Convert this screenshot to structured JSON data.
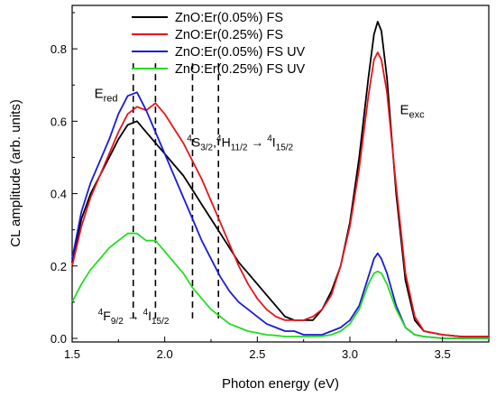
{
  "chart_data": {
    "type": "line",
    "xlabel": "Photon energy (eV)",
    "ylabel": "CL amplitude (arb. units)",
    "xlim": [
      1.5,
      3.75
    ],
    "ylim": [
      -0.01,
      0.92
    ],
    "xticks": [
      1.5,
      2.0,
      2.5,
      3.0,
      3.5
    ],
    "xtick_labels": [
      "1.5",
      "2.0",
      "2.5",
      "3.0",
      "3.5"
    ],
    "yticks": [
      0.0,
      0.2,
      0.4,
      0.6,
      0.8
    ],
    "ytick_labels": [
      "0.0",
      "0.2",
      "0.4",
      "0.6",
      "0.8"
    ],
    "legend_position": "top-center",
    "grid": false,
    "series": [
      {
        "name": "ZnO:Er(0.05%) FS",
        "color": "#000000",
        "x": [
          1.5,
          1.55,
          1.6,
          1.65,
          1.7,
          1.75,
          1.8,
          1.85,
          1.9,
          1.95,
          2.0,
          2.05,
          2.1,
          2.15,
          2.2,
          2.25,
          2.3,
          2.35,
          2.4,
          2.45,
          2.5,
          2.55,
          2.6,
          2.65,
          2.7,
          2.75,
          2.8,
          2.85,
          2.9,
          2.95,
          3.0,
          3.05,
          3.1,
          3.13,
          3.15,
          3.17,
          3.2,
          3.25,
          3.3,
          3.35,
          3.4,
          3.5,
          3.6,
          3.7,
          3.75
        ],
        "y": [
          0.21,
          0.33,
          0.4,
          0.45,
          0.5,
          0.55,
          0.59,
          0.6,
          0.57,
          0.54,
          0.51,
          0.48,
          0.45,
          0.41,
          0.37,
          0.33,
          0.29,
          0.25,
          0.21,
          0.18,
          0.15,
          0.12,
          0.09,
          0.06,
          0.05,
          0.05,
          0.05,
          0.08,
          0.13,
          0.2,
          0.32,
          0.5,
          0.72,
          0.84,
          0.875,
          0.85,
          0.72,
          0.4,
          0.16,
          0.05,
          0.02,
          0.01,
          0.005,
          0.005,
          0.005
        ]
      },
      {
        "name": "ZnO:Er(0.25%) FS",
        "color": "#e8141b",
        "x": [
          1.5,
          1.55,
          1.6,
          1.65,
          1.7,
          1.75,
          1.8,
          1.85,
          1.9,
          1.95,
          2.0,
          2.05,
          2.1,
          2.15,
          2.2,
          2.25,
          2.3,
          2.35,
          2.4,
          2.45,
          2.5,
          2.55,
          2.6,
          2.65,
          2.7,
          2.75,
          2.8,
          2.85,
          2.9,
          2.95,
          3.0,
          3.05,
          3.1,
          3.13,
          3.15,
          3.17,
          3.2,
          3.25,
          3.3,
          3.35,
          3.4,
          3.5,
          3.6,
          3.7,
          3.75
        ],
        "y": [
          0.2,
          0.31,
          0.39,
          0.45,
          0.51,
          0.57,
          0.62,
          0.64,
          0.63,
          0.65,
          0.62,
          0.58,
          0.54,
          0.49,
          0.44,
          0.38,
          0.32,
          0.26,
          0.2,
          0.15,
          0.11,
          0.08,
          0.06,
          0.05,
          0.05,
          0.05,
          0.06,
          0.08,
          0.12,
          0.2,
          0.31,
          0.47,
          0.67,
          0.77,
          0.79,
          0.77,
          0.68,
          0.42,
          0.18,
          0.06,
          0.02,
          0.01,
          0.005,
          0.005,
          0.005
        ]
      },
      {
        "name": "ZnO:Er(0.05%) FS UV",
        "color": "#1b1bd6",
        "x": [
          1.5,
          1.55,
          1.6,
          1.65,
          1.7,
          1.75,
          1.8,
          1.85,
          1.9,
          1.95,
          2.0,
          2.05,
          2.1,
          2.15,
          2.2,
          2.25,
          2.3,
          2.35,
          2.4,
          2.45,
          2.5,
          2.55,
          2.6,
          2.65,
          2.7,
          2.75,
          2.8,
          2.85,
          2.9,
          2.95,
          3.0,
          3.05,
          3.1,
          3.13,
          3.15,
          3.17,
          3.2,
          3.25,
          3.3,
          3.35,
          3.4,
          3.5,
          3.6,
          3.7,
          3.75
        ],
        "y": [
          0.22,
          0.35,
          0.43,
          0.49,
          0.55,
          0.62,
          0.67,
          0.68,
          0.63,
          0.57,
          0.51,
          0.45,
          0.39,
          0.33,
          0.27,
          0.22,
          0.17,
          0.13,
          0.1,
          0.08,
          0.06,
          0.04,
          0.03,
          0.02,
          0.02,
          0.01,
          0.01,
          0.01,
          0.02,
          0.03,
          0.05,
          0.09,
          0.17,
          0.22,
          0.235,
          0.22,
          0.18,
          0.09,
          0.03,
          0.01,
          0.005,
          0.0,
          0.0,
          0.0,
          0.0
        ]
      },
      {
        "name": "ZnO:Er(0.25%) FS UV",
        "color": "#22dd22",
        "x": [
          1.5,
          1.55,
          1.6,
          1.65,
          1.7,
          1.75,
          1.8,
          1.85,
          1.9,
          1.95,
          2.0,
          2.05,
          2.1,
          2.15,
          2.2,
          2.25,
          2.3,
          2.35,
          2.4,
          2.45,
          2.5,
          2.55,
          2.6,
          2.65,
          2.7,
          2.75,
          2.8,
          2.85,
          2.9,
          2.95,
          3.0,
          3.05,
          3.1,
          3.13,
          3.15,
          3.17,
          3.2,
          3.25,
          3.3,
          3.35,
          3.4,
          3.5,
          3.6,
          3.7,
          3.75
        ],
        "y": [
          0.1,
          0.15,
          0.19,
          0.22,
          0.25,
          0.27,
          0.29,
          0.29,
          0.27,
          0.27,
          0.24,
          0.21,
          0.18,
          0.14,
          0.11,
          0.08,
          0.06,
          0.04,
          0.03,
          0.02,
          0.015,
          0.01,
          0.008,
          0.005,
          0.005,
          0.005,
          0.005,
          0.006,
          0.01,
          0.02,
          0.04,
          0.08,
          0.15,
          0.18,
          0.185,
          0.18,
          0.15,
          0.08,
          0.03,
          0.01,
          0.005,
          0.0,
          0.0,
          0.0,
          0.0
        ]
      }
    ],
    "vlines": [
      1.83,
      1.95,
      2.15,
      2.29
    ],
    "annotations": [
      {
        "id": "ered",
        "main": "E",
        "sub": "red",
        "x": 1.62,
        "y": 0.665
      },
      {
        "id": "eexc",
        "main": "E",
        "sub": "exc",
        "x": 3.27,
        "y": 0.62
      },
      {
        "id": "s-h-transition",
        "x": 2.12,
        "y": 0.53,
        "parts": [
          [
            "sup",
            "4"
          ],
          [
            "t",
            "S"
          ],
          [
            "sub",
            "3/2"
          ],
          [
            "t",
            ","
          ],
          [
            "sup",
            "4"
          ],
          [
            "t",
            "H"
          ],
          [
            "sub",
            "11/2"
          ],
          [
            "t",
            " → "
          ],
          [
            "sup",
            "4"
          ],
          [
            "t",
            "I"
          ],
          [
            "sub",
            "15/2"
          ]
        ]
      },
      {
        "id": "f-transition",
        "x": 1.64,
        "y": 0.05,
        "parts": [
          [
            "sup",
            "4"
          ],
          [
            "t",
            "F"
          ],
          [
            "sub",
            "9/2"
          ],
          [
            "t",
            " → "
          ],
          [
            "sup",
            "4"
          ],
          [
            "t",
            "I"
          ],
          [
            "sub",
            "15/2"
          ]
        ]
      }
    ]
  }
}
